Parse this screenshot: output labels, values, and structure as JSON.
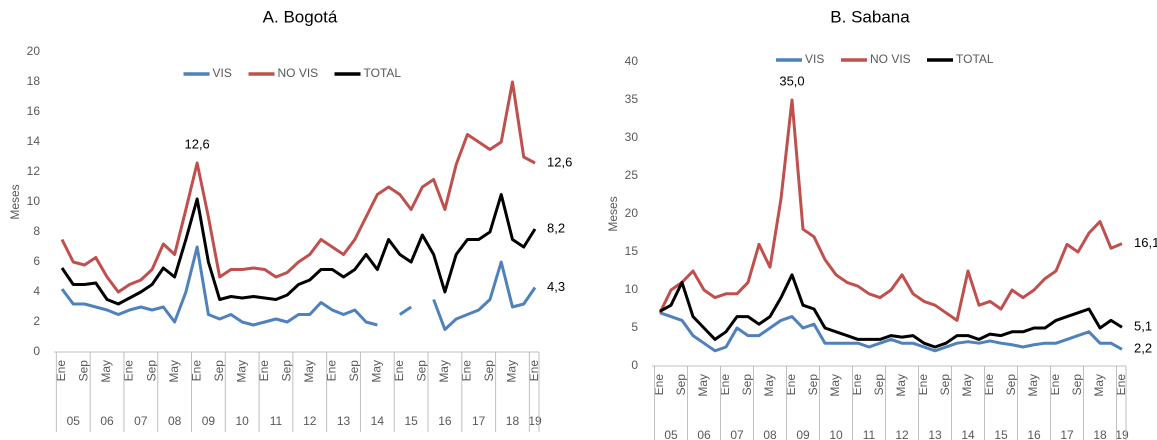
{
  "chart_data": [
    {
      "type": "line",
      "title": "A.    Bogotá",
      "y_label": "Meses",
      "categories": [
        "Ene",
        null,
        "Sep",
        null,
        "May",
        null,
        "Ene",
        null,
        "Sep",
        null,
        "May",
        null,
        "Ene",
        null,
        "Sep",
        null,
        "May",
        null,
        "Ene",
        null,
        "Sep",
        null,
        "May",
        null,
        "Ene",
        null,
        "Sep",
        null,
        "May",
        null,
        "Ene",
        null,
        "Sep",
        null,
        "May",
        null,
        "Ene",
        null,
        "Sep",
        null,
        "May",
        null,
        "Ene"
      ],
      "groups": [
        "05",
        "06",
        "07",
        "08",
        "09",
        "10",
        "11",
        "12",
        "13",
        "14",
        "15",
        "16",
        "17",
        "18",
        "19"
      ],
      "ylim": [
        0,
        20
      ],
      "yticks": [
        0,
        2,
        4,
        6,
        8,
        10,
        12,
        14,
        16,
        18,
        20
      ],
      "legend": "top",
      "series": [
        {
          "name": "VIS",
          "color": "#4f81bd",
          "values": [
            4.2,
            3.2,
            3.2,
            3.0,
            2.8,
            2.5,
            2.8,
            3.0,
            2.8,
            3.0,
            2.0,
            4.0,
            7.0,
            2.5,
            2.2,
            2.5,
            2.0,
            1.8,
            2.0,
            2.2,
            2.0,
            2.5,
            2.5,
            3.3,
            2.8,
            2.5,
            2.8,
            2.0,
            1.8,
            null,
            2.5,
            3.0,
            null,
            3.5,
            1.5,
            2.2,
            2.5,
            2.8,
            3.5,
            6.0,
            3.0,
            3.2,
            4.3
          ],
          "value_labels": [
            null,
            null,
            null,
            null,
            null,
            null,
            null,
            null,
            null,
            null,
            null,
            null,
            null,
            null,
            null,
            null,
            null,
            null,
            null,
            null,
            null,
            null,
            null,
            null,
            null,
            null,
            null,
            null,
            null,
            null,
            null,
            null,
            null,
            null,
            null,
            null,
            null,
            null,
            null,
            null,
            null,
            null,
            "4,3"
          ]
        },
        {
          "name": "NO VIS",
          "color": "#c0504d",
          "values": [
            7.5,
            6.0,
            5.8,
            6.3,
            5.0,
            4.0,
            4.5,
            4.8,
            5.5,
            7.2,
            6.5,
            9.5,
            12.6,
            9.0,
            5.0,
            5.5,
            5.5,
            5.6,
            5.5,
            5.0,
            5.3,
            6.0,
            6.5,
            7.5,
            7.0,
            6.5,
            7.5,
            9.0,
            10.5,
            11.0,
            10.5,
            9.5,
            11.0,
            11.5,
            9.5,
            12.5,
            14.5,
            14.0,
            13.5,
            14.0,
            18.0,
            13.0,
            12.6
          ],
          "value_labels": [
            null,
            null,
            null,
            null,
            null,
            null,
            null,
            null,
            null,
            null,
            null,
            null,
            "12,6",
            null,
            null,
            null,
            null,
            null,
            null,
            null,
            null,
            null,
            null,
            null,
            null,
            null,
            null,
            null,
            null,
            null,
            null,
            null,
            null,
            null,
            null,
            null,
            null,
            null,
            null,
            null,
            null,
            null,
            "12,6"
          ]
        },
        {
          "name": "TOTAL",
          "color": "#000000",
          "values": [
            5.6,
            4.5,
            4.5,
            4.6,
            3.5,
            3.2,
            3.6,
            4.0,
            4.5,
            5.6,
            5.0,
            7.5,
            10.2,
            6.0,
            3.5,
            3.7,
            3.6,
            3.7,
            3.6,
            3.5,
            3.8,
            4.5,
            4.8,
            5.5,
            5.5,
            5.0,
            5.5,
            6.5,
            5.5,
            7.5,
            6.5,
            6.0,
            7.8,
            6.5,
            4.0,
            6.5,
            7.5,
            7.5,
            8.0,
            10.5,
            7.5,
            7.0,
            8.2
          ],
          "value_labels": [
            null,
            null,
            null,
            null,
            null,
            null,
            null,
            null,
            null,
            null,
            null,
            null,
            null,
            null,
            null,
            null,
            null,
            null,
            null,
            null,
            null,
            null,
            null,
            null,
            null,
            null,
            null,
            null,
            null,
            null,
            null,
            null,
            null,
            null,
            null,
            null,
            null,
            null,
            null,
            null,
            null,
            null,
            "8,2"
          ]
        }
      ]
    },
    {
      "type": "line",
      "title": "B.    Sabana",
      "y_label": "Meses",
      "categories": [
        "Ene",
        null,
        "Sep",
        null,
        "May",
        null,
        "Ene",
        null,
        "Sep",
        null,
        "May",
        null,
        "Ene",
        null,
        "Sep",
        null,
        "May",
        null,
        "Ene",
        null,
        "Sep",
        null,
        "May",
        null,
        "Ene",
        null,
        "Sep",
        null,
        "May",
        null,
        "Ene",
        null,
        "Sep",
        null,
        "May",
        null,
        "Ene",
        null,
        "Sep",
        null,
        "May",
        null,
        "Ene"
      ],
      "groups": [
        "05",
        "06",
        "07",
        "08",
        "09",
        "10",
        "11",
        "12",
        "13",
        "14",
        "15",
        "16",
        "17",
        "18",
        "19"
      ],
      "ylim": [
        0,
        40
      ],
      "yticks": [
        0,
        5,
        10,
        15,
        20,
        25,
        30,
        35,
        40
      ],
      "legend": "top",
      "series": [
        {
          "name": "VIS",
          "color": "#4f81bd",
          "values": [
            7.0,
            6.5,
            6.0,
            4.0,
            3.0,
            2.0,
            2.5,
            5.0,
            4.0,
            4.0,
            5.0,
            6.0,
            6.5,
            5.0,
            5.5,
            3.0,
            3.0,
            3.0,
            3.0,
            2.5,
            3.0,
            3.5,
            3.0,
            3.0,
            2.5,
            2.0,
            2.5,
            3.0,
            3.2,
            3.0,
            3.3,
            3.0,
            2.8,
            2.5,
            2.8,
            3.0,
            3.0,
            3.5,
            4.0,
            4.5,
            3.0,
            3.0,
            2.2
          ],
          "value_labels": [
            null,
            null,
            null,
            null,
            null,
            null,
            null,
            null,
            null,
            null,
            null,
            null,
            null,
            null,
            null,
            null,
            null,
            null,
            null,
            null,
            null,
            null,
            null,
            null,
            null,
            null,
            null,
            null,
            null,
            null,
            null,
            null,
            null,
            null,
            null,
            null,
            null,
            null,
            null,
            null,
            null,
            null,
            "2,2"
          ]
        },
        {
          "name": "NO VIS",
          "color": "#c0504d",
          "values": [
            7.0,
            10.0,
            11.0,
            12.5,
            10.0,
            9.0,
            9.5,
            9.5,
            11.0,
            16.0,
            13.0,
            22.0,
            35.0,
            18.0,
            17.0,
            14.0,
            12.0,
            11.0,
            10.5,
            9.5,
            9.0,
            10.0,
            12.0,
            9.5,
            8.5,
            8.0,
            7.0,
            6.0,
            12.5,
            8.0,
            8.5,
            7.5,
            10.0,
            9.0,
            10.0,
            11.5,
            12.5,
            16.0,
            15.0,
            17.5,
            19.0,
            15.5,
            16.1
          ],
          "value_labels": [
            null,
            null,
            null,
            null,
            null,
            null,
            null,
            null,
            null,
            null,
            null,
            null,
            "35,0",
            null,
            null,
            null,
            null,
            null,
            null,
            null,
            null,
            null,
            null,
            null,
            null,
            null,
            null,
            null,
            null,
            null,
            null,
            null,
            null,
            null,
            null,
            null,
            null,
            null,
            null,
            null,
            null,
            null,
            "16,1"
          ]
        },
        {
          "name": "TOTAL",
          "color": "#000000",
          "values": [
            7.2,
            8.0,
            11.0,
            6.5,
            5.0,
            3.5,
            4.5,
            6.5,
            6.5,
            5.5,
            6.5,
            9.0,
            12.0,
            8.0,
            7.5,
            5.0,
            4.5,
            4.0,
            3.5,
            3.5,
            3.5,
            4.0,
            3.8,
            4.0,
            3.0,
            2.5,
            3.0,
            4.0,
            4.0,
            3.5,
            4.2,
            4.0,
            4.5,
            4.5,
            5.0,
            5.0,
            6.0,
            6.5,
            7.0,
            7.5,
            5.0,
            6.0,
            5.1
          ],
          "value_labels": [
            null,
            null,
            null,
            null,
            null,
            null,
            null,
            null,
            null,
            null,
            null,
            null,
            null,
            null,
            null,
            null,
            null,
            null,
            null,
            null,
            null,
            null,
            null,
            null,
            null,
            null,
            null,
            null,
            null,
            null,
            null,
            null,
            null,
            null,
            null,
            null,
            null,
            null,
            null,
            null,
            null,
            null,
            "5,1"
          ]
        }
      ]
    }
  ]
}
